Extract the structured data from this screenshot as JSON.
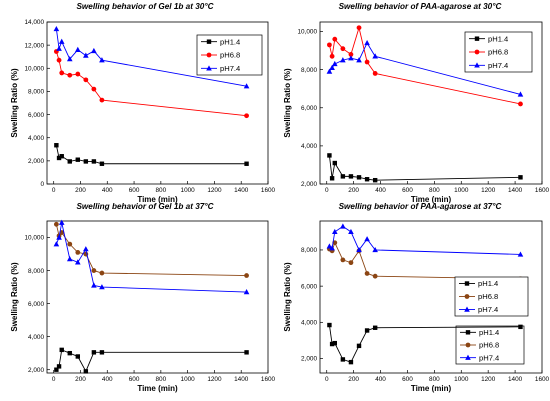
{
  "chart_data": [
    {
      "type": "line",
      "title": "Swelling behavior of Gel 1b at 30°C",
      "xlabel": "Time (min)",
      "ylabel": "Swelling Ratio (%)",
      "xlim": [
        -50,
        1600
      ],
      "ylim": [
        0,
        14000
      ],
      "xticks": [
        0,
        200,
        400,
        600,
        800,
        1000,
        1200,
        1400,
        1600
      ],
      "yticks": [
        0,
        2000,
        4000,
        6000,
        8000,
        10000,
        12000,
        14000
      ],
      "xtick_labels": [
        "0",
        "200",
        "400",
        "600",
        "800",
        "1000",
        "1200",
        "1400",
        "1600"
      ],
      "ytick_labels": [
        "0",
        "2,000",
        "4,000",
        "6,000",
        "8,000",
        "10,000",
        "12,000",
        "14,000"
      ],
      "legend_position": "top-right",
      "series": [
        {
          "name": "pH1.4",
          "color": "#000000",
          "marker": "square",
          "x": [
            20,
            40,
            60,
            120,
            180,
            240,
            300,
            360,
            1440
          ],
          "y": [
            3350,
            2250,
            2400,
            1950,
            2100,
            1950,
            1950,
            1750,
            1750
          ]
        },
        {
          "name": "pH6.8",
          "color": "#ff0000",
          "marker": "circle",
          "x": [
            20,
            40,
            60,
            120,
            180,
            240,
            300,
            360,
            1440
          ],
          "y": [
            11450,
            10700,
            9600,
            9400,
            9500,
            9000,
            8200,
            7250,
            5900
          ]
        },
        {
          "name": "pH7.4",
          "color": "#0000ff",
          "marker": "triangle",
          "x": [
            20,
            40,
            60,
            120,
            180,
            240,
            300,
            360,
            1440
          ],
          "y": [
            13400,
            11700,
            12300,
            10800,
            11600,
            11100,
            11500,
            10700,
            8450
          ]
        }
      ]
    },
    {
      "type": "line",
      "title": "Swelling behavior of PAA-agarose at 30°C",
      "xlabel": "Time (min)",
      "ylabel": "Swelling Ratio (%)",
      "xlim": [
        -50,
        1600
      ],
      "ylim": [
        2000,
        10500
      ],
      "xticks": [
        0,
        200,
        400,
        600,
        800,
        1000,
        1200,
        1400,
        1600
      ],
      "yticks": [
        2000,
        4000,
        6000,
        8000,
        10000
      ],
      "xtick_labels": [
        "0",
        "200",
        "400",
        "600",
        "800",
        "1000",
        "1200",
        "1400",
        "1600"
      ],
      "ytick_labels": [
        "2,000",
        "4,000",
        "6,000",
        "8,000",
        "10,000"
      ],
      "legend_position": "top-right",
      "series": [
        {
          "name": "pH1.4",
          "color": "#000000",
          "marker": "square",
          "x": [
            20,
            40,
            60,
            120,
            180,
            240,
            300,
            360,
            1440
          ],
          "y": [
            3500,
            2300,
            3100,
            2400,
            2400,
            2350,
            2250,
            2200,
            2350
          ]
        },
        {
          "name": "pH6.8",
          "color": "#ff0000",
          "marker": "circle",
          "x": [
            20,
            40,
            60,
            120,
            180,
            240,
            300,
            360,
            1440
          ],
          "y": [
            9300,
            8700,
            9600,
            9100,
            8800,
            10200,
            8400,
            7800,
            6200
          ]
        },
        {
          "name": "pH7.4",
          "color": "#0000ff",
          "marker": "triangle",
          "x": [
            20,
            40,
            60,
            120,
            180,
            240,
            300,
            360,
            1440
          ],
          "y": [
            7900,
            8100,
            8300,
            8500,
            8600,
            8500,
            9400,
            8700,
            6700
          ]
        }
      ]
    },
    {
      "type": "line",
      "title": "Swelling behavior of Gel 1b at 37°C",
      "xlabel": "Time (min)",
      "ylabel": "Swelling Ratio (%)",
      "xlim": [
        -50,
        1600
      ],
      "ylim": [
        1800,
        11000
      ],
      "xticks": [
        0,
        200,
        400,
        600,
        800,
        1000,
        1200,
        1400,
        1600
      ],
      "yticks": [
        2000,
        4000,
        6000,
        8000,
        10000
      ],
      "xtick_labels": [
        "0",
        "200",
        "400",
        "600",
        "800",
        "1000",
        "1200",
        "1400",
        "1600"
      ],
      "ytick_labels": [
        "2,000",
        "4,000",
        "6,000",
        "8,000",
        "10,000"
      ],
      "legend_position": "bottom-right",
      "series": [
        {
          "name": "pH1.4",
          "color": "#000000",
          "marker": "square",
          "x": [
            20,
            40,
            60,
            120,
            180,
            240,
            300,
            360,
            1440
          ],
          "y": [
            2000,
            2200,
            3200,
            3000,
            2800,
            1900,
            3050,
            3050,
            3050
          ]
        },
        {
          "name": "pH6.8",
          "color": "#8b4513",
          "marker": "circle",
          "x": [
            20,
            40,
            60,
            120,
            180,
            240,
            300,
            360,
            1440
          ],
          "y": [
            10800,
            10100,
            10300,
            9600,
            9100,
            9000,
            8000,
            7850,
            7700
          ]
        },
        {
          "name": "pH7.4",
          "color": "#0000ff",
          "marker": "triangle",
          "x": [
            20,
            40,
            60,
            120,
            180,
            240,
            300,
            360,
            1440
          ],
          "y": [
            9600,
            10000,
            10900,
            8700,
            8500,
            9300,
            7100,
            7000,
            6700
          ]
        }
      ]
    },
    {
      "type": "line",
      "title": "Swelling behavior of PAA-agarose at 37°C",
      "xlabel": "Time (min)",
      "ylabel": "Swelling Ratio (%)",
      "xlim": [
        -50,
        1600
      ],
      "ylim": [
        1200,
        9600
      ],
      "xticks": [
        0,
        200,
        400,
        600,
        800,
        1000,
        1200,
        1400,
        1600
      ],
      "yticks": [
        2000,
        4000,
        6000,
        8000
      ],
      "xtick_labels": [
        "0",
        "200",
        "400",
        "600",
        "800",
        "1000",
        "1200",
        "1400",
        "1600"
      ],
      "ytick_labels": [
        "2,000",
        "4,000",
        "6,000",
        "8,000"
      ],
      "legend_position": "center-right",
      "series": [
        {
          "name": "pH1.4",
          "color": "#000000",
          "marker": "square",
          "x": [
            20,
            40,
            60,
            120,
            180,
            240,
            300,
            360,
            1440
          ],
          "y": [
            3850,
            2800,
            2850,
            1950,
            1800,
            2700,
            3550,
            3700,
            3750
          ]
        },
        {
          "name": "pH6.8",
          "color": "#8b4513",
          "marker": "circle",
          "x": [
            20,
            40,
            60,
            120,
            180,
            240,
            300,
            360,
            1440
          ],
          "y": [
            8050,
            7950,
            8400,
            7450,
            7300,
            7950,
            6700,
            6550,
            6400
          ]
        },
        {
          "name": "pH7.4",
          "color": "#0000ff",
          "marker": "triangle",
          "x": [
            20,
            40,
            60,
            120,
            180,
            240,
            300,
            360,
            1440
          ],
          "y": [
            8200,
            8100,
            9000,
            9300,
            9000,
            8000,
            8600,
            8000,
            7750
          ]
        }
      ]
    }
  ]
}
